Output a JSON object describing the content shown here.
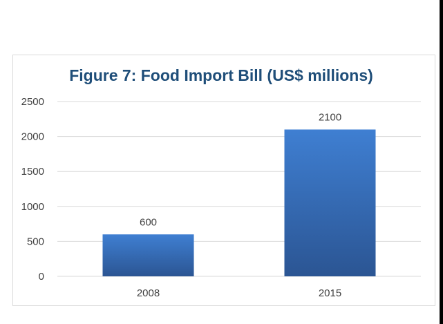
{
  "chart_data": {
    "type": "bar",
    "title": "Figure 7: Food Import Bill (US$ millions)",
    "xlabel": "",
    "ylabel": "",
    "categories": [
      "2008",
      "2015"
    ],
    "values": [
      600,
      2100
    ],
    "data_labels": [
      "600",
      "2100"
    ],
    "ylim": [
      0,
      2500
    ],
    "yticks": [
      0,
      500,
      1000,
      1500,
      2000,
      2500
    ],
    "ytick_labels": [
      "0",
      "500",
      "1000",
      "1500",
      "2000",
      "2500"
    ],
    "grid": true,
    "legend": "none",
    "colors": {
      "bar_top": "#3f7fd2",
      "bar_bottom": "#2b5593",
      "title": "#1f4e79",
      "grid": "#d9d9d9",
      "text": "#404040"
    }
  }
}
